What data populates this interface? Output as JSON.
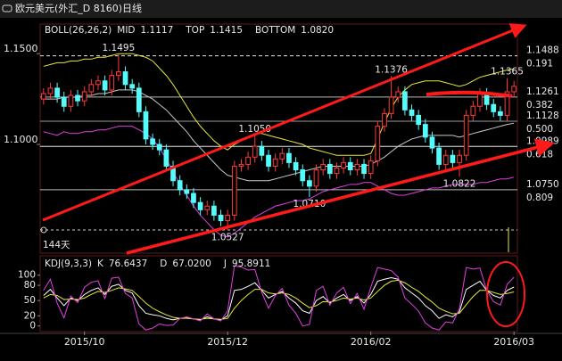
{
  "window_title": "欧元美元(外汇_D 8160)日线",
  "chart_data": [
    {
      "type": "candlestick",
      "indicator": "BOLL(26,26,2)",
      "up_color": "#ff3a3a",
      "down_color": "#54fcfc",
      "ylim": [
        1.0401,
        1.1663
      ],
      "yticks": [
        {
          "value": 1.15,
          "label": "1.1500"
        },
        {
          "value": 1.1,
          "label": "1.1000"
        }
      ],
      "open": [
        1.125,
        1.128,
        1.131,
        1.126,
        1.121,
        1.127,
        1.124,
        1.129,
        1.133,
        1.135,
        1.13,
        1.138,
        1.14,
        1.133,
        1.131,
        1.118,
        1.103,
        1.1,
        1.097,
        1.088,
        1.08,
        1.075,
        1.073,
        1.068,
        1.064,
        1.066,
        1.061,
        1.058,
        1.061,
        1.088,
        1.089,
        1.093,
        1.099,
        1.094,
        1.088,
        1.092,
        1.095,
        1.09,
        1.086,
        1.08,
        1.077,
        1.086,
        1.089,
        1.084,
        1.087,
        1.09,
        1.086,
        1.089,
        1.084,
        1.091,
        1.11,
        1.117,
        1.126,
        1.129,
        1.119,
        1.116,
        1.111,
        1.104,
        1.098,
        1.089,
        1.094,
        1.09,
        1.094,
        1.116,
        1.121,
        1.128,
        1.122,
        1.118,
        1.116,
        1.129
      ],
      "high": [
        1.131,
        1.134,
        1.134,
        1.129,
        1.13,
        1.13,
        1.132,
        1.136,
        1.138,
        1.138,
        1.141,
        1.1495,
        1.143,
        1.136,
        1.134,
        1.121,
        1.106,
        1.103,
        1.1,
        1.091,
        1.083,
        1.078,
        1.076,
        1.071,
        1.069,
        1.069,
        1.064,
        1.064,
        1.091,
        1.092,
        1.096,
        1.105,
        1.102,
        1.097,
        1.095,
        1.098,
        1.098,
        1.093,
        1.089,
        1.083,
        1.089,
        1.092,
        1.092,
        1.09,
        1.093,
        1.093,
        1.092,
        1.092,
        1.094,
        1.113,
        1.12,
        1.1376,
        1.132,
        1.132,
        1.122,
        1.119,
        1.114,
        1.107,
        1.101,
        1.097,
        1.097,
        1.097,
        1.119,
        1.124,
        1.131,
        1.131,
        1.125,
        1.121,
        1.1365,
        1.135
      ],
      "low": [
        1.122,
        1.125,
        1.123,
        1.118,
        1.118,
        1.121,
        1.121,
        1.126,
        1.13,
        1.127,
        1.127,
        1.135,
        1.13,
        1.128,
        1.115,
        1.1,
        1.097,
        1.094,
        1.085,
        1.077,
        1.072,
        1.07,
        1.065,
        1.061,
        1.061,
        1.058,
        1.055,
        1.0527,
        1.058,
        1.085,
        1.086,
        1.09,
        1.091,
        1.085,
        1.085,
        1.089,
        1.087,
        1.083,
        1.077,
        1.071,
        1.074,
        1.083,
        1.081,
        1.081,
        1.084,
        1.083,
        1.083,
        1.081,
        1.081,
        1.088,
        1.107,
        1.114,
        1.123,
        1.116,
        1.113,
        1.108,
        1.101,
        1.095,
        1.086,
        1.086,
        1.087,
        1.0822,
        1.091,
        1.113,
        1.118,
        1.119,
        1.115,
        1.113,
        1.113,
        1.126
      ],
      "close": [
        1.128,
        1.131,
        1.126,
        1.121,
        1.127,
        1.124,
        1.129,
        1.133,
        1.135,
        1.13,
        1.138,
        1.14,
        1.133,
        1.131,
        1.118,
        1.103,
        1.1,
        1.097,
        1.088,
        1.08,
        1.075,
        1.073,
        1.068,
        1.064,
        1.066,
        1.061,
        1.058,
        1.061,
        1.088,
        1.089,
        1.093,
        1.099,
        1.094,
        1.088,
        1.092,
        1.095,
        1.09,
        1.086,
        1.08,
        1.077,
        1.086,
        1.089,
        1.084,
        1.087,
        1.09,
        1.086,
        1.089,
        1.084,
        1.091,
        1.11,
        1.117,
        1.126,
        1.129,
        1.119,
        1.116,
        1.111,
        1.104,
        1.098,
        1.089,
        1.094,
        1.09,
        1.094,
        1.116,
        1.121,
        1.128,
        1.122,
        1.118,
        1.116,
        1.129,
        1.132
      ],
      "series": [
        {
          "name": "MID",
          "color": "#c8c8c8",
          "readout": "1.1117",
          "values": [
            1.125,
            1.125,
            1.125,
            1.126,
            1.126,
            1.126,
            1.127,
            1.127,
            1.128,
            1.128,
            1.129,
            1.13,
            1.13,
            1.13,
            1.129,
            1.127,
            1.125,
            1.122,
            1.119,
            1.115,
            1.111,
            1.107,
            1.102,
            1.098,
            1.094,
            1.09,
            1.086,
            1.083,
            1.082,
            1.081,
            1.08,
            1.08,
            1.08,
            1.08,
            1.081,
            1.082,
            1.083,
            1.084,
            1.085,
            1.086,
            1.087,
            1.088,
            1.088,
            1.088,
            1.088,
            1.088,
            1.088,
            1.088,
            1.089,
            1.091,
            1.093,
            1.096,
            1.099,
            1.101,
            1.103,
            1.104,
            1.105,
            1.105,
            1.105,
            1.105,
            1.105,
            1.104,
            1.105,
            1.106,
            1.107,
            1.108,
            1.109,
            1.11,
            1.111,
            1.1117
          ]
        },
        {
          "name": "TOP",
          "color": "#e8e838",
          "readout": "1.1415",
          "values": [
            1.143,
            1.144,
            1.145,
            1.145,
            1.146,
            1.146,
            1.147,
            1.147,
            1.148,
            1.148,
            1.149,
            1.15,
            1.15,
            1.15,
            1.149,
            1.148,
            1.146,
            1.142,
            1.138,
            1.133,
            1.127,
            1.121,
            1.115,
            1.11,
            1.106,
            1.102,
            1.099,
            1.097,
            1.1,
            1.102,
            1.104,
            1.106,
            1.106,
            1.105,
            1.104,
            1.103,
            1.102,
            1.101,
            1.1,
            1.098,
            1.097,
            1.096,
            1.095,
            1.094,
            1.094,
            1.094,
            1.094,
            1.094,
            1.095,
            1.103,
            1.112,
            1.12,
            1.126,
            1.13,
            1.133,
            1.134,
            1.135,
            1.135,
            1.135,
            1.134,
            1.133,
            1.132,
            1.133,
            1.135,
            1.137,
            1.138,
            1.139,
            1.14,
            1.141,
            1.1415
          ]
        },
        {
          "name": "BOTTOM",
          "color": "#e040e0",
          "readout": "1.0820",
          "values": [
            1.107,
            1.106,
            1.105,
            1.107,
            1.106,
            1.106,
            1.107,
            1.107,
            1.108,
            1.108,
            1.109,
            1.11,
            1.11,
            1.11,
            1.108,
            1.106,
            1.103,
            1.098,
            1.092,
            1.085,
            1.078,
            1.072,
            1.066,
            1.061,
            1.057,
            1.053,
            1.05,
            1.049,
            1.051,
            1.054,
            1.057,
            1.06,
            1.062,
            1.064,
            1.066,
            1.067,
            1.068,
            1.069,
            1.069,
            1.07,
            1.072,
            1.074,
            1.075,
            1.076,
            1.077,
            1.078,
            1.078,
            1.079,
            1.079,
            1.077,
            1.075,
            1.073,
            1.072,
            1.072,
            1.073,
            1.074,
            1.075,
            1.076,
            1.076,
            1.077,
            1.078,
            1.078,
            1.078,
            1.078,
            1.079,
            1.079,
            1.08,
            1.081,
            1.081,
            1.082
          ]
        }
      ],
      "levels": [
        {
          "value": 1.1488,
          "label": "1.1488",
          "ratio": "0.191",
          "color": "#e8e8e8",
          "dashed": true
        },
        {
          "value": 1.1261,
          "label": "1.1261",
          "ratio": "0.382",
          "color": "#bdbdbd",
          "dashed": false
        },
        {
          "value": 1.1128,
          "label": "1.1128",
          "ratio": "0.500",
          "color": "#9a9a9a",
          "dashed": false
        },
        {
          "value": 1.0989,
          "label": "1.0989",
          "ratio": "0.618",
          "color": "#e8e8e8",
          "dashed": false
        },
        {
          "value": 1.075,
          "label": "1.0750",
          "ratio": "0.809",
          "color": "#bdbdbd",
          "dashed": false
        }
      ],
      "annotations": [
        {
          "value": 1.1495,
          "label": "1.1495",
          "at": "high"
        },
        {
          "value": 1.105,
          "label": "1.1050",
          "at": "high"
        },
        {
          "value": 1.1376,
          "label": "1.1376",
          "at": "high"
        },
        {
          "value": 1.1365,
          "label": "1.1365",
          "at": "high"
        },
        {
          "value": 1.0527,
          "label": "1.0527",
          "at": "low"
        },
        {
          "value": 1.071,
          "label": "1.0710",
          "at": "low"
        },
        {
          "value": 1.0822,
          "label": "1.0822",
          "at": "low"
        }
      ],
      "cycle_label": "144天"
    },
    {
      "type": "line",
      "indicator": "KDJ(9,3,3)",
      "ylim": [
        -11,
        138
      ],
      "yticks": [
        100,
        80,
        50,
        20,
        0
      ],
      "categories": [
        null,
        null,
        null,
        null,
        null,
        null,
        "2015/10",
        null,
        null,
        null,
        null,
        null,
        null,
        null,
        null,
        null,
        null,
        null,
        null,
        null,
        null,
        null,
        null,
        null,
        null,
        null,
        null,
        "2015/12",
        null,
        null,
        null,
        null,
        null,
        null,
        null,
        null,
        null,
        null,
        null,
        null,
        null,
        null,
        null,
        null,
        null,
        null,
        null,
        null,
        "2016/02",
        null,
        null,
        null,
        null,
        null,
        null,
        null,
        null,
        null,
        null,
        null,
        null,
        null,
        null,
        null,
        null,
        null,
        null,
        null,
        null,
        "2016/03"
      ],
      "series": [
        {
          "name": "K",
          "color": "#ffffff",
          "readout": "76.6437",
          "values": [
            60,
            72,
            55,
            40,
            55,
            50,
            62,
            70,
            75,
            62,
            78,
            82,
            70,
            65,
            40,
            25,
            22,
            20,
            15,
            12,
            15,
            16,
            14,
            12,
            18,
            14,
            12,
            20,
            70,
            72,
            78,
            85,
            70,
            55,
            62,
            68,
            55,
            45,
            30,
            25,
            50,
            58,
            45,
            55,
            62,
            50,
            58,
            45,
            62,
            88,
            92,
            95,
            92,
            75,
            65,
            55,
            40,
            30,
            15,
            22,
            18,
            28,
            72,
            80,
            88,
            70,
            60,
            55,
            70,
            76.6437
          ]
        },
        {
          "name": "D",
          "color": "#e8e838",
          "readout": "67.0200",
          "values": [
            55,
            62,
            60,
            52,
            53,
            52,
            55,
            62,
            68,
            66,
            70,
            75,
            73,
            70,
            58,
            45,
            35,
            28,
            22,
            17,
            15,
            15,
            14,
            13,
            15,
            14,
            13,
            15,
            35,
            50,
            62,
            72,
            72,
            65,
            63,
            65,
            62,
            55,
            45,
            36,
            40,
            48,
            47,
            50,
            55,
            53,
            55,
            51,
            55,
            68,
            80,
            88,
            90,
            85,
            76,
            68,
            57,
            47,
            35,
            29,
            24,
            25,
            42,
            58,
            70,
            70,
            66,
            62,
            64,
            67.02
          ]
        },
        {
          "name": "J",
          "color": "#e040e0",
          "readout": "95.8911",
          "values": [
            70,
            92,
            45,
            16,
            59,
            46,
            76,
            86,
            89,
            54,
            94,
            96,
            64,
            55,
            4,
            -8,
            -4,
            4,
            1,
            2,
            15,
            18,
            14,
            10,
            24,
            14,
            10,
            30,
            118,
            116,
            110,
            111,
            66,
            35,
            60,
            74,
            41,
            25,
            0,
            3,
            70,
            78,
            41,
            65,
            76,
            44,
            64,
            33,
            76,
            115,
            112,
            109,
            96,
            55,
            43,
            29,
            6,
            -4,
            -8,
            8,
            6,
            34,
            115,
            112,
            114,
            70,
            48,
            41,
            82,
            95.8911
          ]
        }
      ]
    }
  ]
}
